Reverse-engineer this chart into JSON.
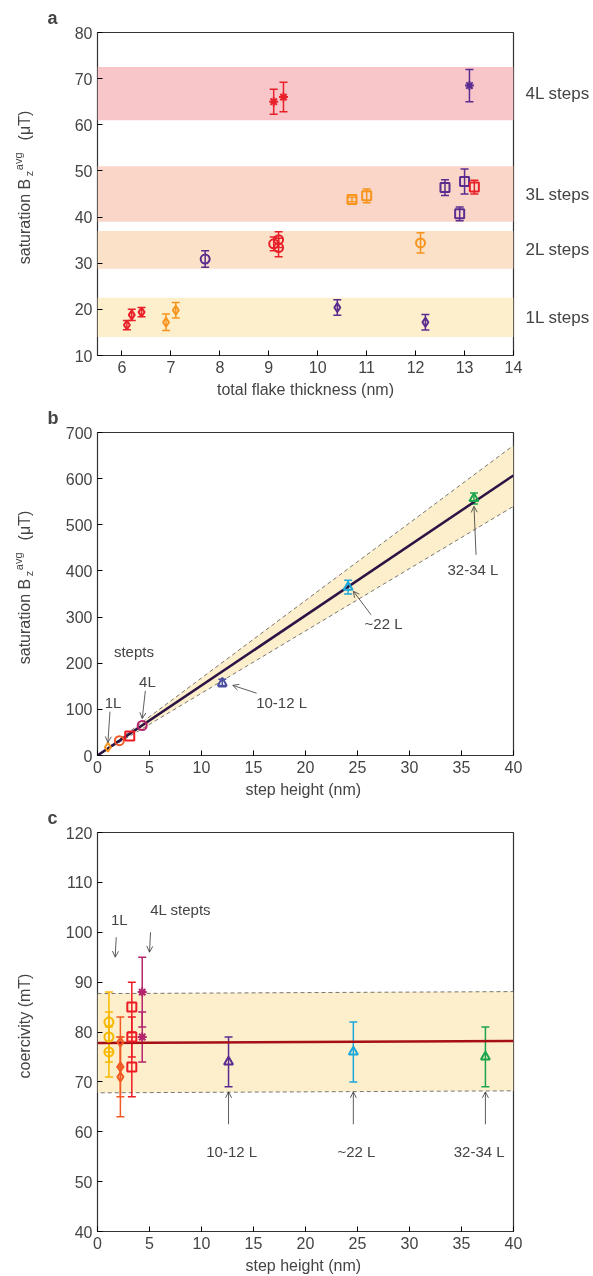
{
  "chart_data": [
    {
      "type": "scatter",
      "title": "a",
      "xlabel": "total flake thickness (nm)",
      "ylabel": "saturation  B$_{z}$$^{avg}$  (μT)",
      "xlim": [
        5.5,
        14
      ],
      "ylim": [
        10,
        80
      ],
      "xticks": [
        6,
        7,
        8,
        9,
        10,
        11,
        12,
        13,
        14
      ],
      "yticks": [
        10,
        20,
        30,
        40,
        50,
        60,
        70,
        80
      ],
      "grid": false,
      "bands": [
        {
          "axis": "y",
          "from": 61,
          "to": 72.5,
          "label": "4L steps",
          "color": "#f8c5c8"
        },
        {
          "axis": "y",
          "from": 39,
          "to": 51,
          "label": "3L steps",
          "color": "#f9d6c8"
        },
        {
          "axis": "y",
          "from": 28.8,
          "to": 37,
          "label": "2L steps",
          "color": "#fbe1c8"
        },
        {
          "axis": "y",
          "from": 14,
          "to": 22.5,
          "label": "1L steps",
          "color": "#fdefcc"
        }
      ],
      "series": [
        {
          "color": "#e8202a",
          "marker": "cross",
          "x": [
            9.1,
            9.3
          ],
          "values": [
            65,
            66
          ],
          "errors": [
            2.7,
            3.2
          ]
        },
        {
          "color": "#5b2c8f",
          "marker": "cross",
          "x": [
            13.1
          ],
          "values": [
            68.5
          ],
          "errors": [
            3.5
          ]
        },
        {
          "color": "#f7941d",
          "marker": "square",
          "x": [
            10.7,
            11.0
          ],
          "values": [
            43.8,
            44.6
          ],
          "errors": [
            0.5,
            1.5
          ]
        },
        {
          "color": "#5b2c8f",
          "marker": "square",
          "x": [
            12.6,
            13.0,
            12.9
          ],
          "values": [
            46.4,
            47.7,
            40.7
          ],
          "errors": [
            1.7,
            2.7,
            1.5
          ]
        },
        {
          "color": "#e8202a",
          "marker": "square",
          "x": [
            13.2
          ],
          "values": [
            46.5
          ],
          "errors": [
            1.5
          ]
        },
        {
          "color": "#5b2c8f",
          "marker": "circle",
          "x": [
            7.7
          ],
          "values": [
            30.9
          ],
          "errors": [
            1.8
          ]
        },
        {
          "color": "#e8202a",
          "marker": "circle",
          "x": [
            9.1,
            9.2,
            9.2
          ],
          "values": [
            34.2,
            35.1,
            33.4
          ],
          "errors": [
            1.5,
            1.7,
            2.0
          ]
        },
        {
          "color": "#f7941d",
          "marker": "circle",
          "x": [
            12.1
          ],
          "values": [
            34.4
          ],
          "errors": [
            2.2
          ]
        },
        {
          "color": "#e8202a",
          "marker": "diamond",
          "x": [
            6.1,
            6.2,
            6.4
          ],
          "values": [
            16.6,
            18.8,
            19.4
          ],
          "errors": [
            1.0,
            1.2,
            1.0
          ]
        },
        {
          "color": "#f7941d",
          "marker": "diamond",
          "x": [
            6.9,
            7.1
          ],
          "values": [
            17.2,
            19.8
          ],
          "errors": [
            1.8,
            1.7
          ]
        },
        {
          "color": "#5b2c8f",
          "marker": "diamond",
          "x": [
            10.4,
            12.2
          ],
          "values": [
            20.4,
            17.2
          ],
          "errors": [
            1.7,
            1.7
          ]
        }
      ]
    },
    {
      "type": "scatter",
      "title": "b",
      "xlabel": "step height  (nm)",
      "ylabel": "saturation  B$_{z}$$^{avg}$  (μT)",
      "xlim": [
        0,
        40
      ],
      "ylim": [
        0,
        700
      ],
      "xticks": [
        0,
        5,
        10,
        15,
        20,
        25,
        30,
        35,
        40
      ],
      "yticks": [
        0,
        100,
        200,
        300,
        400,
        500,
        600,
        700
      ],
      "grid": false,
      "annotations": [
        {
          "text": "1L",
          "x": 1.0,
          "y": 18
        },
        {
          "text": "4L",
          "x": 4.3,
          "y": 65
        },
        "stepts",
        {
          "text": "10-12 L",
          "x": 12.0,
          "y": 157
        },
        {
          "text": "~22 L",
          "x": 24.1,
          "y": 365
        },
        {
          "text": "32-34 L",
          "x": 36.2,
          "y": 557
        }
      ],
      "series": [
        {
          "type": "line",
          "color": "#2b1445",
          "x": [
            0,
            40
          ],
          "values": [
            0,
            607
          ],
          "lower": [
            0,
            540
          ],
          "upper": [
            0,
            672
          ]
        },
        {
          "color": "#f7941d",
          "marker": "diamond",
          "x": [
            1.0
          ],
          "values": [
            18
          ]
        },
        {
          "color": "#f15a24",
          "marker": "circle",
          "x": [
            2.1
          ],
          "values": [
            32
          ]
        },
        {
          "color": "#ed1c24",
          "marker": "square",
          "x": [
            3.1
          ],
          "values": [
            42
          ]
        },
        {
          "color": "#b5256b",
          "marker": "circle",
          "x": [
            4.3
          ],
          "values": [
            65
          ]
        },
        {
          "color": "#4b4fa0",
          "marker": "triangle",
          "x": [
            12.0
          ],
          "values": [
            157
          ],
          "errors": [
            8
          ]
        },
        {
          "color": "#1ba7d9",
          "marker": "triangle",
          "x": [
            24.1
          ],
          "values": [
            365
          ],
          "errors": [
            15
          ]
        },
        {
          "color": "#1aa54b",
          "marker": "triangle",
          "x": [
            36.2
          ],
          "values": [
            557
          ],
          "errors": [
            12
          ]
        }
      ]
    },
    {
      "type": "scatter",
      "title": "c",
      "xlabel": "step height  (nm)",
      "ylabel": "coercivity (mT)",
      "xlim": [
        0,
        40
      ],
      "ylim": [
        40,
        120
      ],
      "xticks": [
        0,
        5,
        10,
        15,
        20,
        25,
        30,
        35,
        40
      ],
      "yticks": [
        40,
        50,
        60,
        70,
        80,
        90,
        100,
        110,
        120
      ],
      "grid": false,
      "annotations": [
        "1L",
        "4L stepts",
        {
          "text": "10-12 L",
          "x": 12.6,
          "y": 68
        },
        {
          "text": "~22 L",
          "x": 24.6,
          "y": 68
        },
        {
          "text": "32-34 L",
          "x": 37.3,
          "y": 68
        }
      ],
      "series": [
        {
          "type": "line",
          "color": "#a50f15",
          "x": [
            0,
            40
          ],
          "values": [
            77.8,
            78.2
          ],
          "lower": [
            67.8,
            68.2
          ],
          "upper": [
            87.7,
            88.1
          ]
        },
        {
          "color": "#f7b800",
          "marker": "circle",
          "x": [
            1.1,
            1.1,
            1.1
          ],
          "values": [
            82,
            79,
            76
          ],
          "errors": [
            6,
            5,
            5
          ]
        },
        {
          "color": "#f15a24",
          "marker": "diamond",
          "x": [
            2.2,
            2.2,
            2.2
          ],
          "values": [
            78,
            73,
            71
          ],
          "errors": [
            5,
            6,
            8
          ]
        },
        {
          "color": "#ed1c24",
          "marker": "square",
          "x": [
            3.3,
            3.3,
            3.3
          ],
          "values": [
            85,
            79,
            73
          ],
          "errors": [
            5,
            4,
            6
          ]
        },
        {
          "color": "#b5256b",
          "marker": "cross",
          "x": [
            4.3,
            4.3
          ],
          "values": [
            88,
            79
          ],
          "errors": [
            7,
            5
          ]
        },
        {
          "color": "#5b2c8f",
          "marker": "triangle",
          "x": [
            12.6
          ],
          "values": [
            74
          ],
          "errors": [
            5
          ]
        },
        {
          "color": "#1ba7d9",
          "marker": "triangle",
          "x": [
            24.6
          ],
          "values": [
            76
          ],
          "errors": [
            6
          ]
        },
        {
          "color": "#1aa54b",
          "marker": "triangle",
          "x": [
            37.3
          ],
          "values": [
            75
          ],
          "errors": [
            6
          ]
        }
      ]
    }
  ]
}
